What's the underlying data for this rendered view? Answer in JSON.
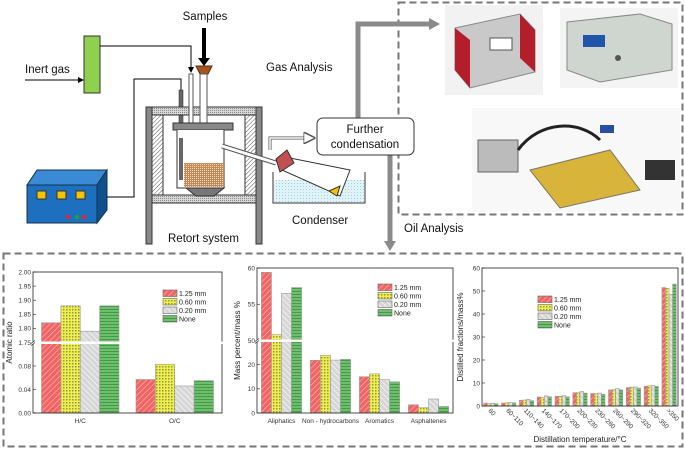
{
  "diagram": {
    "samples": "Samples",
    "inert_gas": "Inert gas",
    "gas_analysis": "Gas Analysis",
    "further_condensation_1": "Further",
    "further_condensation_2": "condensation",
    "condenser": "Condenser",
    "retort_system": "Retort system",
    "oil_analysis": "Oil Analysis",
    "colors": {
      "inert_gas_box": "#8fd14f",
      "power_box": "#1f6fc1",
      "sample": "#b07a4a",
      "arrow_gray": "#8a8a8a"
    }
  },
  "legend": [
    "1.25 mm",
    "0.60 mm",
    "0.20 mm",
    "None"
  ],
  "series_colors": [
    "#f06464",
    "#eeee55",
    "#d2d2d2",
    "#6cbf6c"
  ],
  "chart_data": [
    {
      "type": "bar",
      "ylabel": "Atomic ratio",
      "xlabel": "",
      "categories": [
        "H/C",
        "O/C"
      ],
      "series": [
        {
          "name": "1.25 mm",
          "values": [
            1.82,
            0.057
          ]
        },
        {
          "name": "0.60 mm",
          "values": [
            1.88,
            0.083
          ]
        },
        {
          "name": "0.20 mm",
          "values": [
            1.79,
            0.046
          ]
        },
        {
          "name": "None",
          "values": [
            1.88,
            0.055
          ]
        }
      ],
      "y_break": {
        "lower": [
          0,
          0.12
        ],
        "upper": [
          1.75,
          2.0
        ]
      },
      "yticks_lower": [
        "0.00",
        "0.04",
        "0.08"
      ],
      "yticks_upper": [
        "1.75",
        "1.80",
        "1.85",
        "1.90",
        "1.95",
        "2.00"
      ],
      "legend_placement": "top-right"
    },
    {
      "type": "bar",
      "ylabel": "Mass percent/mass %",
      "xlabel": "",
      "categories": [
        "Aliphatics",
        "Non - hydrocarbons",
        "Aromatics",
        "Asphaltenes"
      ],
      "series": [
        {
          "name": "1.25 mm",
          "values": [
            59.4,
            21.8,
            15.0,
            3.4
          ]
        },
        {
          "name": "0.60 mm",
          "values": [
            50.8,
            23.9,
            16.2,
            2.2
          ]
        },
        {
          "name": "0.20 mm",
          "values": [
            56.5,
            21.9,
            13.8,
            5.8
          ]
        },
        {
          "name": "None",
          "values": [
            57.3,
            22.2,
            12.9,
            2.7
          ]
        }
      ],
      "y_break": {
        "lower": [
          0,
          30
        ],
        "upper": [
          50,
          60
        ]
      },
      "yticks_lower": [
        "0",
        "10",
        "20"
      ],
      "yticks_upper": [
        "50",
        "55",
        "60"
      ],
      "legend_placement": "top-right"
    },
    {
      "type": "bar",
      "ylabel": "Distilled fractions/mass%",
      "xlabel": "Distillation temperature/°C",
      "categories": [
        "60",
        "60~110",
        "110~140",
        "140~170",
        "170~200",
        "200~230",
        "230~260",
        "260~290",
        "290~320",
        "320~350",
        ">350"
      ],
      "series": [
        {
          "name": "1.25 mm",
          "values": [
            1.3,
            1.3,
            2.5,
            3.9,
            4.2,
            5.8,
            5.4,
            7.0,
            8.0,
            8.6,
            51.5
          ]
        },
        {
          "name": "0.60 mm",
          "values": [
            1.0,
            1.4,
            2.6,
            3.8,
            4.2,
            5.8,
            5.4,
            7.1,
            8.2,
            8.8,
            51.2
          ]
        },
        {
          "name": "0.20 mm",
          "values": [
            1.2,
            1.5,
            2.9,
            4.4,
            4.5,
            6.3,
            5.6,
            7.6,
            8.3,
            8.9,
            48.5
          ]
        },
        {
          "name": "None",
          "values": [
            1.0,
            1.4,
            2.3,
            4.0,
            4.0,
            5.6,
            5.1,
            7.0,
            7.8,
            8.5,
            53.0
          ]
        }
      ],
      "ylim": [
        0,
        60
      ],
      "yticks": [
        "0",
        "10",
        "20",
        "30",
        "40",
        "50",
        "60"
      ],
      "legend_placement": "upper-left"
    }
  ]
}
